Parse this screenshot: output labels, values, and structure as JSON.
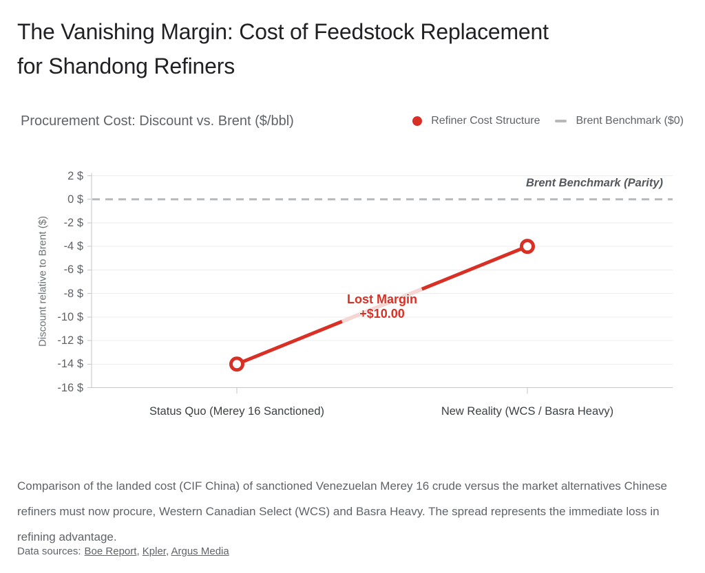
{
  "title": {
    "line1": "The Vanishing Margin: Cost of Feedstock Replacement",
    "line2": "for Shandong Refiners"
  },
  "chart": {
    "subtitle": "Procurement Cost: Discount vs. Brent ($/bbl)",
    "legend": [
      {
        "label": "Refiner Cost Structure",
        "marker": "red-dot"
      },
      {
        "label": "Brent Benchmark ($0)",
        "marker": "gray-dash"
      }
    ]
  },
  "chart_data": {
    "type": "line",
    "title": "Procurement Cost: Discount vs. Brent ($/bbl)",
    "categories": [
      "Status Quo (Merey 16 Sanctioned)",
      "New Reality (WCS / Basra Heavy)"
    ],
    "series": [
      {
        "name": "Refiner Cost Structure",
        "values": [
          -14,
          -4
        ],
        "color": "#d93025",
        "marker": "open-circle"
      }
    ],
    "benchmark_line": {
      "value": 0,
      "label": "Brent Benchmark (Parity)",
      "legend_label": "Brent Benchmark ($0)",
      "style": "dashed"
    },
    "annotation": {
      "text_line1": "Lost Margin",
      "text_line2": "+$10.00"
    },
    "ylabel": "Discount relative to Brent ($)",
    "ylim": [
      -16,
      2
    ],
    "yticks": [
      2,
      0,
      -2,
      -4,
      -6,
      -8,
      -10,
      -12,
      -14,
      -16
    ],
    "ytick_format": "{v} $",
    "grid": true,
    "legend_position": "top-right"
  },
  "colors": {
    "accent_red": "#d93025",
    "pink_segment": "#f5d6d2",
    "benchmark_gray": "#b6b9bb",
    "grid": "#ececec",
    "axis": "#c6c6c6",
    "text_dark": "#202124",
    "text_gray": "#5f6368",
    "category_label": "#3c4043"
  },
  "footer": {
    "description": "Comparison of the landed cost (CIF China) of sanctioned Venezuelan Merey 16 crude versus the market alternatives Chinese refiners must now procure, Western Canadian Select (WCS) and Basra Heavy. The spread represents the immediate loss in refining advantage.",
    "sources_label": "Data sources:",
    "sources_separator": ", ",
    "sources": [
      "Boe Report",
      "Kpler",
      "Argus Media"
    ]
  }
}
